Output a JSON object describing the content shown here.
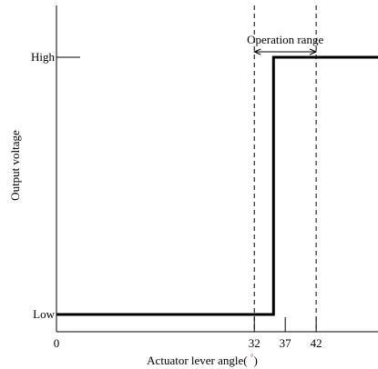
{
  "chart_data": {
    "type": "line",
    "title": "",
    "xlabel": "Actuator lever angle( ",
    "xlabel_unit": "°",
    "xlabel_close": ")",
    "ylabel": "Output voltage",
    "x_ticks": [
      {
        "value": 0,
        "label": "0"
      },
      {
        "value": 32,
        "label": "32"
      },
      {
        "value": 37,
        "label": "37"
      },
      {
        "value": 42,
        "label": "42"
      }
    ],
    "y_ticks": [
      {
        "value": 0,
        "label": "Low"
      },
      {
        "value": 1,
        "label": "High"
      }
    ],
    "xlim": [
      0,
      52
    ],
    "ylim": [
      -0.05,
      1.1
    ],
    "series": [
      {
        "x": [
          0,
          35.1,
          35.1,
          52
        ],
        "y": [
          0,
          0,
          1,
          1
        ]
      }
    ],
    "reference_lines": [
      32,
      42
    ],
    "annotation": {
      "label": "Operation range",
      "from": 32,
      "to": 42
    },
    "colors": {
      "line": "#000000",
      "axis": "#000000",
      "degree_symbol": "#d22222"
    },
    "grid": false,
    "legend": "none"
  }
}
